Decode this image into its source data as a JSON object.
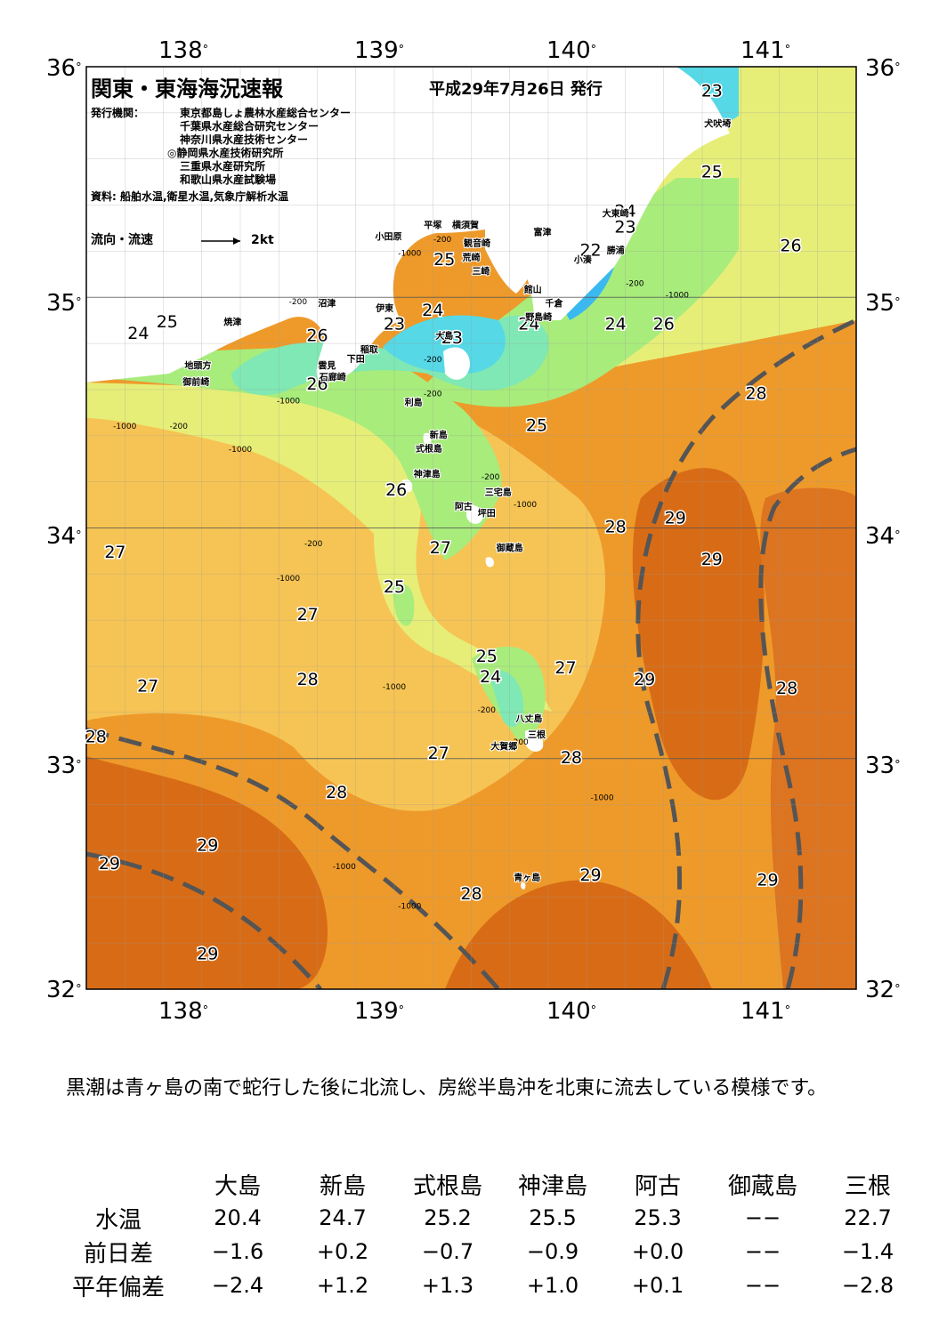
{
  "title": "関東・東海海況速報",
  "issue_date": "平成29年7月26日 発行",
  "issuers_label": "発行機関：",
  "issuers": [
    "東京都島しょ農林水産総合センター",
    "千葉県水産総合研究センター",
    "神奈川県水産技術センター",
    "◎静岡県水産技術研究所",
    "三重県水産研究所",
    "和歌山県水産試験場"
  ],
  "sources": "資料: 船舶水温,衛星水温,気象庁解析水温",
  "legend": {
    "label": "流向・流速",
    "scale": "2kt"
  },
  "axes": {
    "lon_ticks": [
      "138",
      "139",
      "140",
      "141"
    ],
    "lat_ticks": [
      "36",
      "35",
      "34",
      "33",
      "32"
    ],
    "degree": "°"
  },
  "colors": {
    "t22": "#3ab8f0",
    "t23": "#56d8e6",
    "t24": "#7fe8b4",
    "t25": "#a8ec7c",
    "t26": "#e6ee78",
    "t27": "#f6c454",
    "t28": "#ee9a2a",
    "t29": "#d86c16",
    "t30": "#c45810",
    "land": "#ffffff",
    "kuroshio": "#555555"
  },
  "isotherm_labels": [
    {
      "t": "23",
      "lon": 140.75,
      "lat": 35.87
    },
    {
      "t": "25",
      "lon": 140.75,
      "lat": 35.52
    },
    {
      "t": "24",
      "lon": 140.3,
      "lat": 35.35
    },
    {
      "t": "23",
      "lon": 140.3,
      "lat": 35.28
    },
    {
      "t": "22",
      "lon": 140.12,
      "lat": 35.18
    },
    {
      "t": "26",
      "lon": 141.16,
      "lat": 35.2
    },
    {
      "t": "25",
      "lon": 139.36,
      "lat": 35.14
    },
    {
      "t": "24",
      "lon": 139.3,
      "lat": 34.92
    },
    {
      "t": "23",
      "lon": 139.1,
      "lat": 34.86
    },
    {
      "t": "23",
      "lon": 139.4,
      "lat": 34.8
    },
    {
      "t": "24",
      "lon": 139.8,
      "lat": 34.86
    },
    {
      "t": "24",
      "lon": 140.25,
      "lat": 34.86
    },
    {
      "t": "26",
      "lon": 140.5,
      "lat": 34.86
    },
    {
      "t": "25",
      "lon": 137.92,
      "lat": 34.87
    },
    {
      "t": "24",
      "lon": 137.77,
      "lat": 34.82
    },
    {
      "t": "26",
      "lon": 138.7,
      "lat": 34.81
    },
    {
      "t": "26",
      "lon": 138.7,
      "lat": 34.6
    },
    {
      "t": "28",
      "lon": 140.98,
      "lat": 34.56
    },
    {
      "t": "25",
      "lon": 139.84,
      "lat": 34.42
    },
    {
      "t": "26",
      "lon": 139.11,
      "lat": 34.14
    },
    {
      "t": "29",
      "lon": 140.56,
      "lat": 34.02
    },
    {
      "t": "28",
      "lon": 140.25,
      "lat": 33.98
    },
    {
      "t": "27",
      "lon": 137.65,
      "lat": 33.87
    },
    {
      "t": "27",
      "lon": 139.34,
      "lat": 33.89
    },
    {
      "t": "29",
      "lon": 140.75,
      "lat": 33.84
    },
    {
      "t": "25",
      "lon": 139.1,
      "lat": 33.72
    },
    {
      "t": "27",
      "lon": 138.65,
      "lat": 33.6
    },
    {
      "t": "25",
      "lon": 139.58,
      "lat": 33.42
    },
    {
      "t": "27",
      "lon": 139.99,
      "lat": 33.37
    },
    {
      "t": "24",
      "lon": 139.6,
      "lat": 33.33
    },
    {
      "t": "28",
      "lon": 138.65,
      "lat": 33.32
    },
    {
      "t": "29",
      "lon": 140.4,
      "lat": 33.32
    },
    {
      "t": "27",
      "lon": 137.82,
      "lat": 33.29
    },
    {
      "t": "28",
      "lon": 141.14,
      "lat": 33.28
    },
    {
      "t": "28",
      "lon": 137.55,
      "lat": 33.07
    },
    {
      "t": "27",
      "lon": 139.33,
      "lat": 33.0
    },
    {
      "t": "28",
      "lon": 140.02,
      "lat": 32.98
    },
    {
      "t": "28",
      "lon": 138.8,
      "lat": 32.83
    },
    {
      "t": "29",
      "lon": 138.13,
      "lat": 32.6
    },
    {
      "t": "29",
      "lon": 137.62,
      "lat": 32.52
    },
    {
      "t": "29",
      "lon": 140.12,
      "lat": 32.47
    },
    {
      "t": "29",
      "lon": 141.04,
      "lat": 32.45
    },
    {
      "t": "28",
      "lon": 139.5,
      "lat": 32.39
    },
    {
      "t": "29",
      "lon": 138.13,
      "lat": 32.13
    }
  ],
  "depth_labels": [
    {
      "t": "-1000",
      "lon": 139.18,
      "lat": 35.18
    },
    {
      "t": "-200",
      "lon": 139.35,
      "lat": 35.24
    },
    {
      "t": "-200",
      "lon": 138.6,
      "lat": 34.97
    },
    {
      "t": "-200",
      "lon": 140.35,
      "lat": 35.05
    },
    {
      "t": "-1000",
      "lon": 140.57,
      "lat": 35.0
    },
    {
      "t": "-200",
      "lon": 139.3,
      "lat": 34.72
    },
    {
      "t": "-200",
      "lon": 139.3,
      "lat": 34.57
    },
    {
      "t": "-1000",
      "lon": 138.55,
      "lat": 34.54
    },
    {
      "t": "-1000",
      "lon": 137.7,
      "lat": 34.43
    },
    {
      "t": "-200",
      "lon": 137.98,
      "lat": 34.43
    },
    {
      "t": "-1000",
      "lon": 138.3,
      "lat": 34.33
    },
    {
      "t": "-200",
      "lon": 139.6,
      "lat": 34.21
    },
    {
      "t": "-1000",
      "lon": 139.78,
      "lat": 34.09
    },
    {
      "t": "-200",
      "lon": 138.68,
      "lat": 33.92
    },
    {
      "t": "-1000",
      "lon": 138.55,
      "lat": 33.77
    },
    {
      "t": "-1000",
      "lon": 139.1,
      "lat": 33.3
    },
    {
      "t": "-200",
      "lon": 139.58,
      "lat": 33.2
    },
    {
      "t": "-200",
      "lon": 139.75,
      "lat": 33.06
    },
    {
      "t": "-1000",
      "lon": 140.18,
      "lat": 32.82
    },
    {
      "t": "-1000",
      "lon": 138.84,
      "lat": 32.52
    },
    {
      "t": "-1000",
      "lon": 139.18,
      "lat": 32.35
    }
  ],
  "place_labels": [
    {
      "t": "犬吠埼",
      "lon": 140.78,
      "lat": 35.74
    },
    {
      "t": "大東崎",
      "lon": 140.25,
      "lat": 35.35
    },
    {
      "t": "勝浦",
      "lon": 140.25,
      "lat": 35.19
    },
    {
      "t": "小湊",
      "lon": 140.08,
      "lat": 35.15
    },
    {
      "t": "富津",
      "lon": 139.87,
      "lat": 35.27
    },
    {
      "t": "観音崎",
      "lon": 139.53,
      "lat": 35.22
    },
    {
      "t": "横須賀",
      "lon": 139.47,
      "lat": 35.3
    },
    {
      "t": "平塚",
      "lon": 139.3,
      "lat": 35.3
    },
    {
      "t": "小田原",
      "lon": 139.07,
      "lat": 35.25
    },
    {
      "t": "荒崎",
      "lon": 139.5,
      "lat": 35.16
    },
    {
      "t": "三崎",
      "lon": 139.55,
      "lat": 35.1
    },
    {
      "t": "館山",
      "lon": 139.82,
      "lat": 35.02
    },
    {
      "t": "千倉",
      "lon": 139.93,
      "lat": 34.96
    },
    {
      "t": "野島崎",
      "lon": 139.85,
      "lat": 34.9
    },
    {
      "t": "沼津",
      "lon": 138.75,
      "lat": 34.96
    },
    {
      "t": "伊東",
      "lon": 139.05,
      "lat": 34.94
    },
    {
      "t": "焼津",
      "lon": 138.26,
      "lat": 34.88
    },
    {
      "t": "大島",
      "lon": 139.36,
      "lat": 34.82
    },
    {
      "t": "稲取",
      "lon": 138.97,
      "lat": 34.76
    },
    {
      "t": "下田",
      "lon": 138.9,
      "lat": 34.72
    },
    {
      "t": "雲見",
      "lon": 138.75,
      "lat": 34.69
    },
    {
      "t": "石廊崎",
      "lon": 138.78,
      "lat": 34.64
    },
    {
      "t": "地頭方",
      "lon": 138.08,
      "lat": 34.69
    },
    {
      "t": "御前崎",
      "lon": 138.07,
      "lat": 34.62
    },
    {
      "t": "利島",
      "lon": 139.2,
      "lat": 34.53
    },
    {
      "t": "新島",
      "lon": 139.33,
      "lat": 34.39
    },
    {
      "t": "式根島",
      "lon": 139.28,
      "lat": 34.33
    },
    {
      "t": "神津島",
      "lon": 139.27,
      "lat": 34.22
    },
    {
      "t": "阿古",
      "lon": 139.46,
      "lat": 34.08
    },
    {
      "t": "三宅島",
      "lon": 139.64,
      "lat": 34.14
    },
    {
      "t": "坪田",
      "lon": 139.58,
      "lat": 34.05
    },
    {
      "t": "御蔵島",
      "lon": 139.7,
      "lat": 33.9
    },
    {
      "t": "八丈島",
      "lon": 139.8,
      "lat": 33.16
    },
    {
      "t": "三根",
      "lon": 139.84,
      "lat": 33.09
    },
    {
      "t": "大賀郷",
      "lon": 139.67,
      "lat": 33.04
    },
    {
      "t": "青ヶ島",
      "lon": 139.79,
      "lat": 32.47
    }
  ],
  "comment": "黒潮は青ヶ島の南で蛇行した後に北流し、房総半島沖を北東に流去している模様です。",
  "table": {
    "stations": [
      "大島",
      "新島",
      "式根島",
      "神津島",
      "阿古",
      "御蔵島",
      "三根"
    ],
    "rows": [
      {
        "label": "水温",
        "values": [
          "20.4",
          "24.7",
          "25.2",
          "25.5",
          "25.3",
          "−−",
          "22.7"
        ]
      },
      {
        "label": "前日差",
        "values": [
          "−1.6",
          "+0.2",
          "−0.7",
          "−0.9",
          "+0.0",
          "−−",
          "−1.4"
        ]
      },
      {
        "label": "平年偏差",
        "values": [
          "−2.4",
          "+1.2",
          "+1.3",
          "+1.0",
          "+0.1",
          "−−",
          "−2.8"
        ]
      }
    ]
  }
}
